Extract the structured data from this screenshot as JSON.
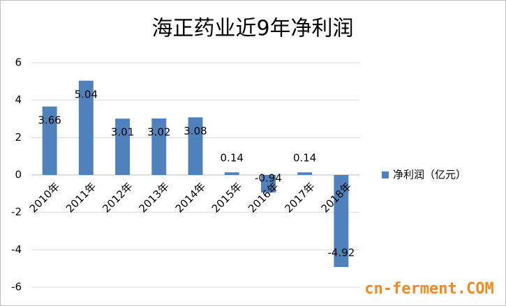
{
  "chart_data": {
    "type": "bar",
    "title": "海正药业近9年净利润",
    "categories": [
      "2010年",
      "2011年",
      "2012年",
      "2013年",
      "2014年",
      "2015年",
      "2016年",
      "2017年",
      "2018年"
    ],
    "series": [
      {
        "name": "净利润（亿元）",
        "color": "#4f81bd",
        "values": [
          3.66,
          5.04,
          3.01,
          3.02,
          3.08,
          0.14,
          -0.94,
          0.14,
          -4.92
        ]
      }
    ],
    "ylim": [
      -6,
      6
    ],
    "yticks": [
      -6,
      -4,
      -2,
      0,
      2,
      4,
      6
    ],
    "grid": true,
    "legend": "right",
    "watermark": "cn-ferment.COM"
  }
}
